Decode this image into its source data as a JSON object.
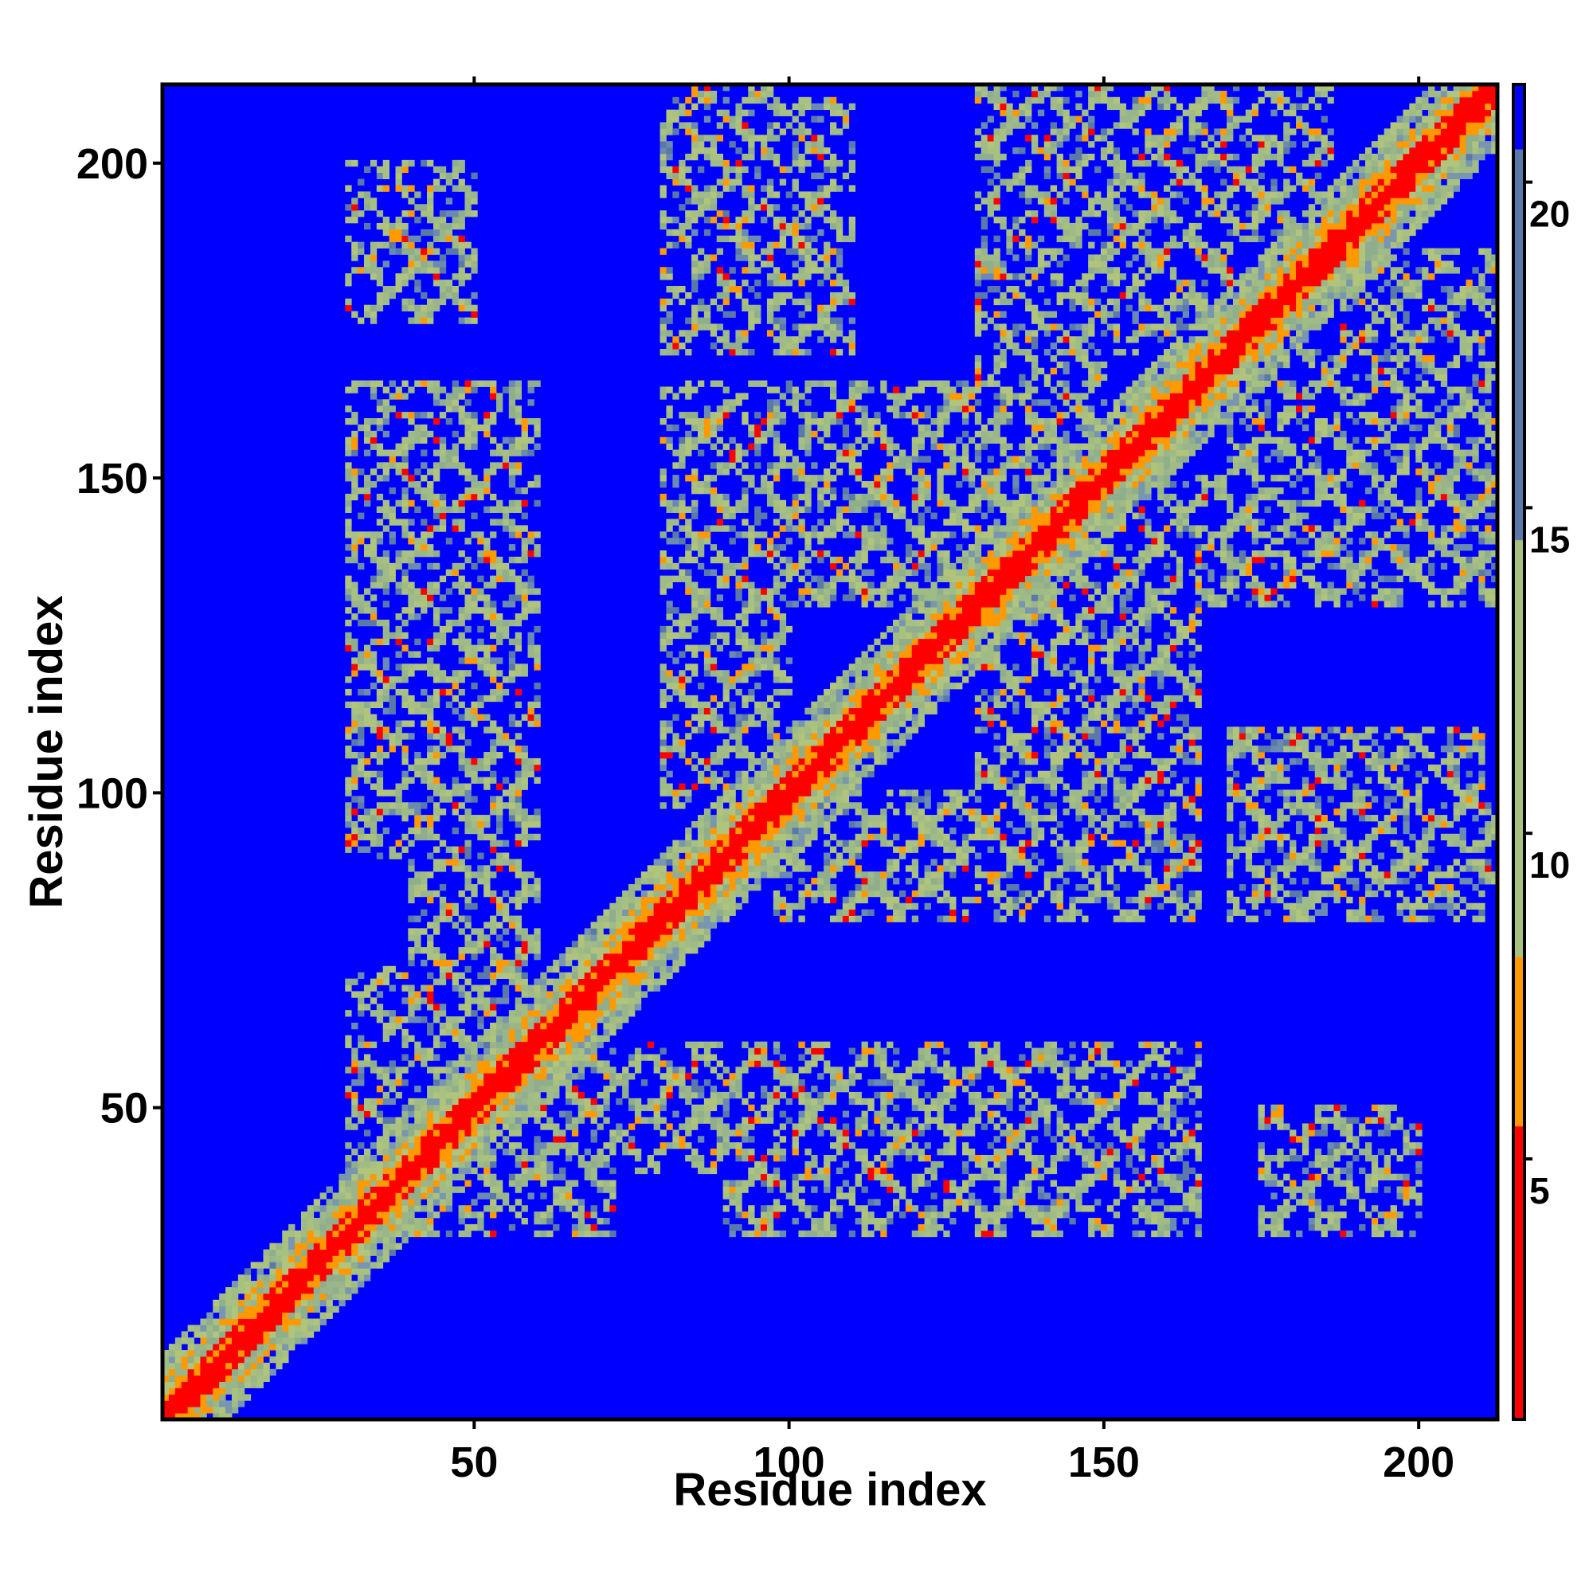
{
  "chart_data": {
    "type": "heatmap",
    "title": "",
    "xlabel": "Residue index",
    "ylabel": "Residue index",
    "n_residues": 212,
    "xlim": [
      1,
      212
    ],
    "ylim": [
      1,
      212
    ],
    "x_ticks": [
      50,
      100,
      150,
      200
    ],
    "y_ticks": [
      50,
      100,
      150,
      200
    ],
    "colorbar": {
      "ticks": [
        5,
        10,
        15,
        20
      ],
      "range": [
        1,
        21.5
      ],
      "colors": {
        "low": "#ff0000",
        "mid": "#ff9900",
        "mid_high": "#a8c080",
        "high": "#5a78a8",
        "background": "#0000ff"
      }
    },
    "structure": {
      "diagonal": "red band along residue i = j",
      "helix_segments": [
        [
          3,
          12
        ],
        [
          14,
          24
        ],
        [
          30,
          40
        ],
        [
          44,
          58
        ],
        [
          60,
          72
        ],
        [
          80,
          96
        ],
        [
          98,
          112
        ],
        [
          114,
          128
        ],
        [
          136,
          150
        ],
        [
          152,
          168
        ],
        [
          170,
          186
        ],
        [
          188,
          204
        ]
      ],
      "blocks": [
        [
          [
            30,
            58
          ],
          [
            40,
            72
          ]
        ],
        [
          [
            80,
            96
          ],
          [
            98,
            128
          ]
        ],
        [
          [
            136,
            150
          ],
          [
            152,
            168
          ]
        ],
        [
          [
            170,
            186
          ],
          [
            188,
            212
          ]
        ],
        [
          [
            60,
            96
          ],
          [
            40,
            60
          ]
        ],
        [
          [
            100,
            160
          ],
          [
            80,
            100
          ]
        ],
        [
          [
            140,
            212
          ],
          [
            130,
            150
          ]
        ],
        [
          [
            30,
            60
          ],
          [
            90,
            130
          ]
        ],
        [
          [
            80,
            130
          ],
          [
            130,
            165
          ]
        ],
        [
          [
            130,
            170
          ],
          [
            170,
            212
          ]
        ],
        [
          [
            30,
            50
          ],
          [
            180,
            200
          ]
        ],
        [
          [
            80,
            110
          ],
          [
            170,
            210
          ]
        ],
        [
          [
            130,
            165
          ],
          [
            30,
            60
          ]
        ],
        [
          [
            175,
            200
          ],
          [
            30,
            50
          ]
        ],
        [
          [
            175,
            212
          ],
          [
            85,
            100
          ]
        ]
      ]
    }
  }
}
